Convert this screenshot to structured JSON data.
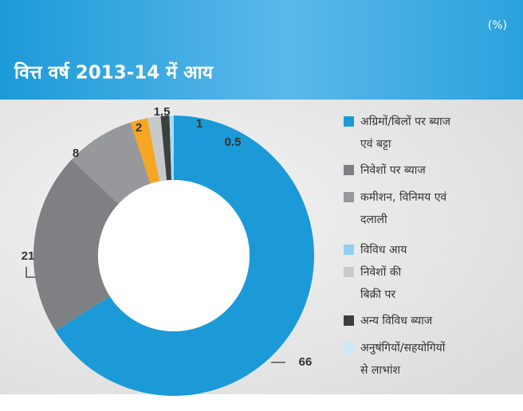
{
  "chart_data": {
    "type": "donut",
    "unit": "(%)",
    "title": "वित्त वर्ष 2013-14 में आय",
    "categories": [
      [
        "अग्रिमों/बिलों पर ब्याज",
        "एवं बट्टा"
      ],
      [
        "निवेशों पर ब्याज"
      ],
      [
        "कमीशन, विनिमय एवं",
        "दलाली"
      ],
      [
        "विविध आय"
      ],
      [
        "निवेशों की",
        "बिक्री पर"
      ],
      [
        "अन्य विविध ब्याज"
      ],
      [
        "अनुषंगियों/सहयोगियों",
        "से लाभांश"
      ]
    ],
    "values": [
      66,
      21,
      8,
      2,
      1.5,
      1,
      0.5
    ],
    "colors": [
      "#1b9ad7",
      "#7f8083",
      "#97989b",
      "#f5a623",
      "#c8c9cb",
      "#3d3e40",
      "#a9dcf5"
    ],
    "legend_colors": [
      "#1b9ad7",
      "#7f8083",
      "#97989b",
      "#8fd0f2",
      "#c8c9cb",
      "#3d3e40",
      "#c9e9f8"
    ]
  }
}
